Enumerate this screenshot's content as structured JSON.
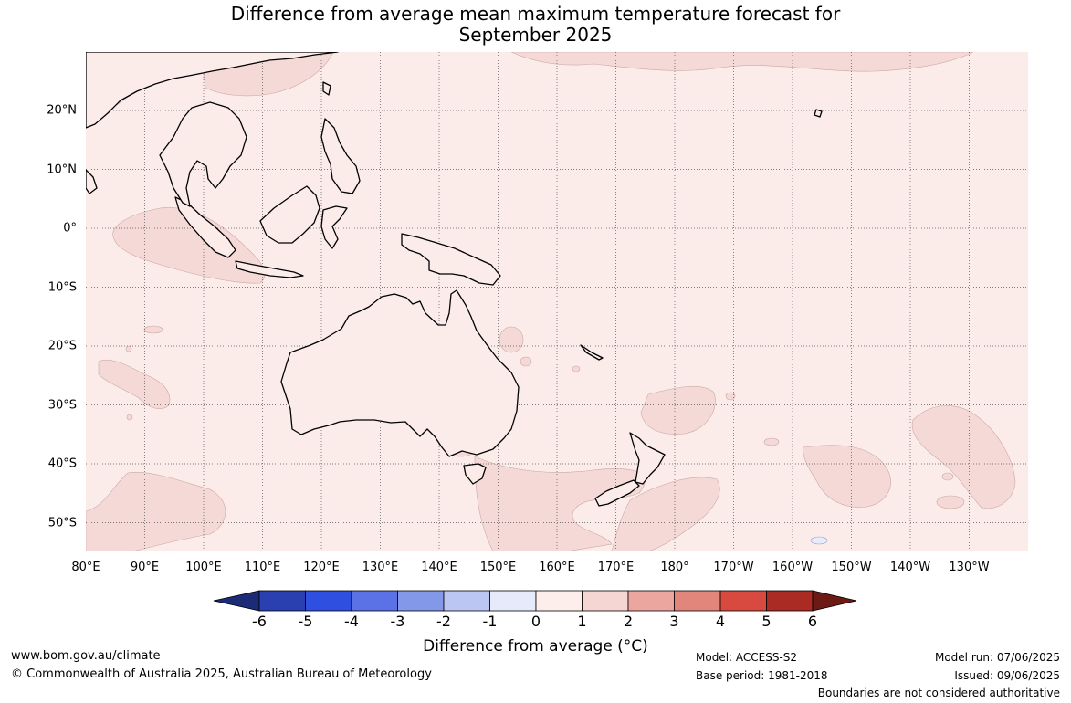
{
  "title_line1": "Difference from average mean maximum temperature forecast for",
  "title_line2": "September 2025",
  "lon_labels": [
    "80°E",
    "90°E",
    "100°E",
    "110°E",
    "120°E",
    "130°E",
    "140°E",
    "150°E",
    "160°E",
    "170°E",
    "180°",
    "170°W",
    "160°W",
    "150°W",
    "140°W",
    "130°W"
  ],
  "lat_labels": [
    "20°N",
    "10°N",
    "0°",
    "10°S",
    "20°S",
    "30°S",
    "40°S",
    "50°S"
  ],
  "colorbar": {
    "ticks": [
      "-6",
      "-5",
      "-4",
      "-3",
      "-2",
      "-1",
      "0",
      "1",
      "2",
      "3",
      "4",
      "5",
      "6"
    ],
    "colors": [
      "#1b2b78",
      "#2a3fb0",
      "#2f4fe0",
      "#5a72e6",
      "#8498ea",
      "#bcc6f2",
      "#e7eafb",
      "#fdeeec",
      "#f5d6d3",
      "#eba79f",
      "#e2857a",
      "#d84a3f",
      "#aa2a24",
      "#6e1a14"
    ],
    "label": "Difference from average (°C)"
  },
  "map": {
    "background_color": "#fbecea",
    "warm_anomaly_color": "#f5d9d6",
    "cool_anomaly_color": "#e8ebfa",
    "land_color": "#fbecea",
    "coast_color": "#000000"
  },
  "footer": {
    "url": "www.bom.gov.au/climate",
    "copyright": "© Commonwealth of Australia 2025, Australian Bureau of Meteorology",
    "model": "Model: ACCESS-S2",
    "base_period": "Base period: 1981-2018",
    "model_run": "Model run: 07/06/2025",
    "issued": "Issued: 09/06/2025",
    "disclaimer": "Boundaries are not considered authoritative"
  }
}
